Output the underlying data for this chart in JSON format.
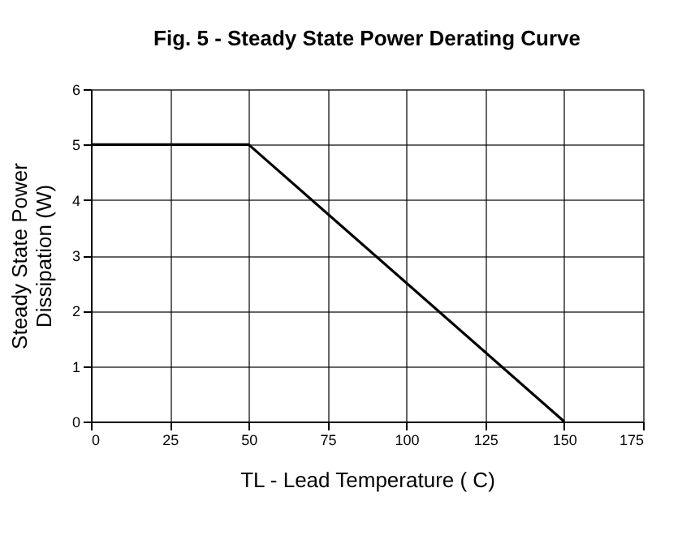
{
  "chart_data": {
    "type": "line",
    "title": "Fig. 5 - Steady State Power Derating Curve",
    "xlabel": "TL - Lead Temperature ( C)",
    "ylabel": "Steady State Power Dissipation (W)",
    "x": [
      0,
      50,
      150
    ],
    "series": [
      {
        "color": "#000000",
        "values": [
          5,
          5,
          0
        ]
      }
    ],
    "xlim": [
      0,
      175
    ],
    "xticks": [
      0,
      25,
      50,
      75,
      100,
      125,
      150,
      175
    ],
    "ylim": [
      0,
      6
    ],
    "yticks": [
      0,
      1,
      2,
      3,
      4,
      5,
      6
    ],
    "grid": true,
    "marker": "none",
    "line_style": "solid"
  }
}
